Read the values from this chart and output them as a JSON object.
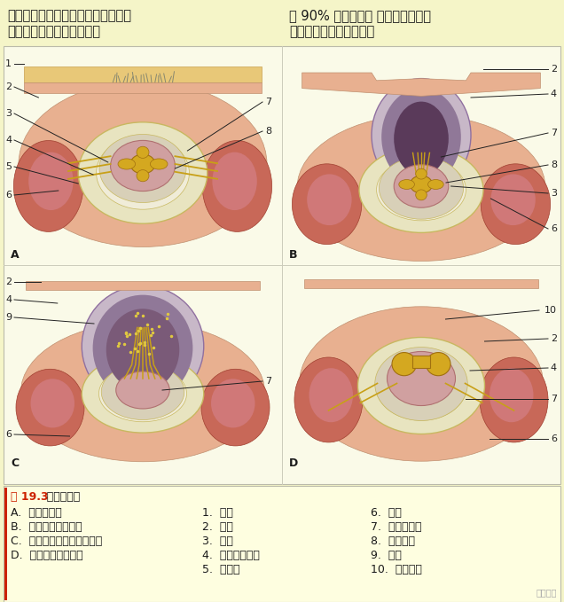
{
  "bg_color": "#F5F5C8",
  "diag_bg": "#FAFAE8",
  "leg_bg": "#FEFEE0",
  "header_text1_line1": "脊柱裂的产前诊断依靠超声和孕母血",
  "header_text1_line2": "中或羊水中甲胎蛋白定量。",
  "header_text2_line1": "在 90% 的病例中， 脊膜膏出伴有下",
  "header_text2_line2": "肢瘵痪及精神发育迟滞。",
  "figure_title_num": "图 19.3",
  "figure_title_txt": "  脊髓的畸形",
  "figure_title_color": "#CC2200",
  "labels_col1": [
    "A.  隐性脊柱裂",
    "B.  脊柱裂伴脊膜膏出",
    "C.  脊柱裂伴脊髓和脊膜膏出",
    "D.  脊柱裂伴脊髓纵裂"
  ],
  "labels_col2": [
    "1.  簇毛",
    "2.  皮肤",
    "3.  脊髓",
    "4.  硬膜和蛛网膜",
    "5.  脊神经"
  ],
  "labels_col3": [
    "6.  椎骨",
    "7.  蛛网膜下隙",
    "8.  脊神经节",
    "9.  马尾",
    "10.  脊髓迷途"
  ],
  "watermark": "神外前沿",
  "text_color": "#1A1A1A",
  "ann_color": "#222222",
  "font_size_header": 10.5,
  "font_size_label": 9,
  "font_size_num": 8,
  "font_size_panel": 9,
  "font_size_title": 9
}
